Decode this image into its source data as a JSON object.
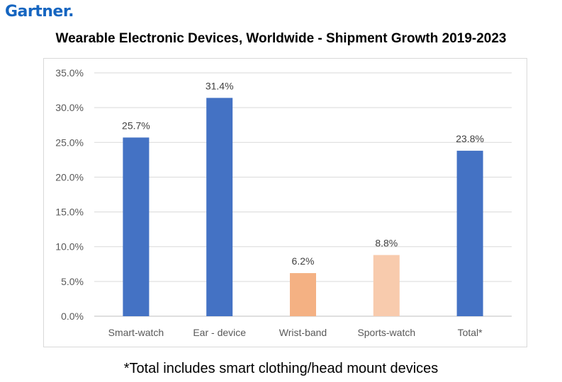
{
  "brand": {
    "logo_text": "Gartner.",
    "color": "#1565c0"
  },
  "footnote": "*Total includes smart clothing/head mount devices",
  "chart_data": {
    "type": "bar",
    "title": "Wearable Electronic Devices, Worldwide - Shipment Growth 2019-2023",
    "xlabel": "",
    "ylabel": "",
    "categories": [
      "Smart-watch",
      "Ear - device",
      "Wrist-band",
      "Sports-watch",
      "Total*"
    ],
    "values": [
      25.7,
      31.4,
      6.2,
      8.8,
      23.8
    ],
    "value_labels": [
      "25.7%",
      "31.4%",
      "6.2%",
      "8.8%",
      "23.8%"
    ],
    "colors": [
      "#4472c4",
      "#4472c4",
      "#f4b183",
      "#f8cbad",
      "#4472c4"
    ],
    "ylim": [
      0,
      35
    ],
    "yticks": [
      0,
      5,
      10,
      15,
      20,
      25,
      30,
      35
    ],
    "ytick_labels": [
      "0.0%",
      "5.0%",
      "10.0%",
      "15.0%",
      "20.0%",
      "25.0%",
      "30.0%",
      "35.0%"
    ],
    "grid": true,
    "legend": "none"
  }
}
